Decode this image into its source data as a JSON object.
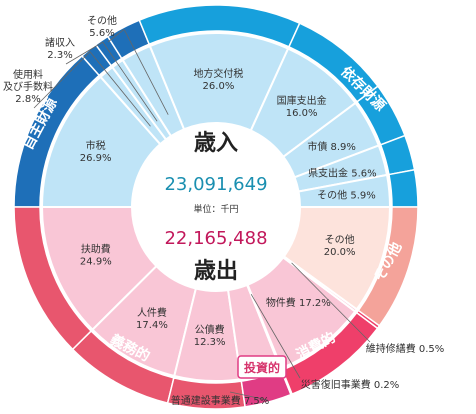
{
  "colors": {
    "revenue_outer_self": "#1e6fb8",
    "revenue_outer_dep": "#17a0dc",
    "revenue_inner": "#bfe4f7",
    "expense_outer_duty": "#e8566e",
    "expense_outer_inv": "#e03c84",
    "expense_outer_cons": "#ef3f6a",
    "expense_outer_other": "#f4a39a",
    "expense_inner": "#f9c6d6",
    "expense_other_inner": "#fde3dc",
    "revenue_total": "#1a8fb0",
    "expense_total": "#c2185b"
  },
  "center": {
    "revenue_title": "歳入",
    "revenue_total": "23,091,649",
    "unit": "単位：千円",
    "expense_total": "22,165,488",
    "expense_title": "歳出"
  },
  "ring_labels": {
    "self": "自主財源",
    "dependent": "依存財源",
    "duty": "義務的",
    "investment": "投資的",
    "consumption": "消費的",
    "other": "その他"
  },
  "chart_data": [
    {
      "type": "pie",
      "title": "歳入",
      "total": 23091649,
      "unit": "単位：千円",
      "groups": [
        {
          "name": "自主財源",
          "items": [
            "市税",
            "使用料及び手数料",
            "諸収入",
            "その他"
          ]
        },
        {
          "name": "依存財源",
          "items": [
            "地方交付税",
            "国庫支出金",
            "市債",
            "県支出金",
            "その他"
          ]
        }
      ],
      "slices": [
        {
          "key": "zei",
          "label": "市税",
          "value": 26.9,
          "pct": "26.9%"
        },
        {
          "key": "shiyo",
          "label": "使用料\n及び手数料",
          "value": 2.8,
          "pct": "2.8%"
        },
        {
          "key": "sho",
          "label": "諸収入",
          "value": 2.3,
          "pct": "2.3%"
        },
        {
          "key": "sonota1",
          "label": "その他",
          "value": 5.6,
          "pct": "5.6%"
        },
        {
          "key": "kofu",
          "label": "地方交付税",
          "value": 26.0,
          "pct": "26.0%"
        },
        {
          "key": "kokko",
          "label": "国庫支出金",
          "value": 16.0,
          "pct": "16.0%"
        },
        {
          "key": "shisai",
          "label": "市債",
          "value": 8.9,
          "pct": "8.9%"
        },
        {
          "key": "ken",
          "label": "県支出金",
          "value": 5.6,
          "pct": "5.6%"
        },
        {
          "key": "sonota2",
          "label": "その他",
          "value": 5.9,
          "pct": "5.9%"
        }
      ]
    },
    {
      "type": "pie",
      "title": "歳出",
      "total": 22165488,
      "unit": "単位：千円",
      "groups": [
        {
          "name": "義務的",
          "items": [
            "扶助費",
            "人件費",
            "公債費"
          ]
        },
        {
          "name": "投資的",
          "items": [
            "普通建設事業費",
            "災害復旧事業費"
          ]
        },
        {
          "name": "消費的",
          "items": [
            "物件費",
            "維持修繕費"
          ]
        },
        {
          "name": "その他",
          "items": [
            "その他"
          ]
        }
      ],
      "slices": [
        {
          "key": "fujo",
          "label": "扶助費",
          "value": 24.9,
          "pct": "24.9%"
        },
        {
          "key": "jinken",
          "label": "人件費",
          "value": 17.4,
          "pct": "17.4%"
        },
        {
          "key": "kosai",
          "label": "公債費",
          "value": 12.3,
          "pct": "12.3%"
        },
        {
          "key": "futsu",
          "label": "普通建設事業費",
          "value": 7.5,
          "pct": "7.5%"
        },
        {
          "key": "saigai",
          "label": "災害復旧事業費",
          "value": 0.2,
          "pct": "0.2%"
        },
        {
          "key": "bukken",
          "label": "物件費",
          "value": 17.2,
          "pct": "17.2%"
        },
        {
          "key": "iji",
          "label": "維持修繕費",
          "value": 0.5,
          "pct": "0.5%"
        },
        {
          "key": "sonota3",
          "label": "その他",
          "value": 20.0,
          "pct": "20.0%"
        }
      ]
    }
  ]
}
